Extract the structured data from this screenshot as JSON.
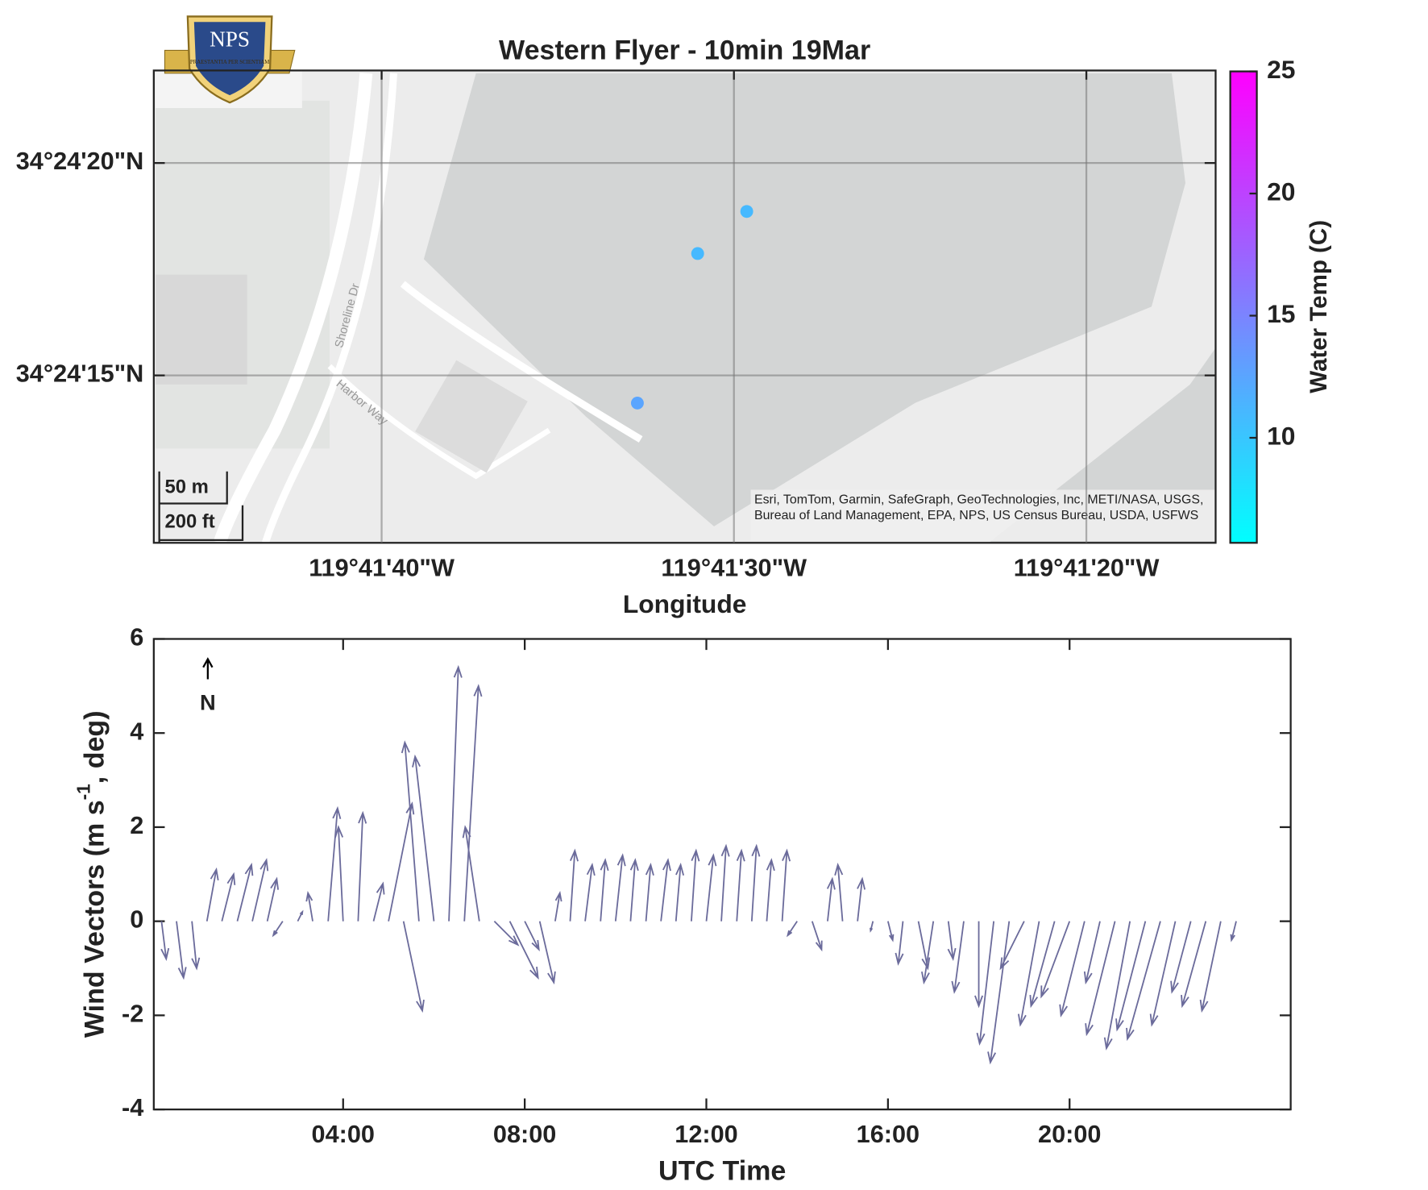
{
  "chart_data": [
    {
      "type": "scatter",
      "title": "Western Flyer - 10min 19Mar",
      "xlabel": "Longitude",
      "x": [
        -119.691566,
        -119.691953,
        -119.692428
      ],
      "y": [
        34.405239,
        34.404964,
        34.403986
      ],
      "values": [
        11,
        11,
        12.5
      ],
      "colormap": "cool",
      "clim": [
        5.7,
        25
      ],
      "cticks": [
        10,
        15,
        20,
        25
      ],
      "clabel": "Water Temp (C)",
      "xlim": [
        -119.69624,
        -119.68787
      ],
      "xticks": [
        {
          "value": -119.694444,
          "label": "119°41'40\"W"
        },
        {
          "value": -119.691667,
          "label": "119°41'30\"W"
        },
        {
          "value": -119.688889,
          "label": "119°41'20\"W"
        }
      ],
      "ylim": [
        34.403072,
        34.406161
      ],
      "yticks": [
        {
          "value": 34.404167,
          "label": "34°24'15\"N"
        },
        {
          "value": 34.405556,
          "label": "34°24'20\"N"
        }
      ],
      "grid": true,
      "attribution": "Esri, TomTom, Garmin, SafeGraph, GeoTechnologies, Inc, METI/NASA, USGS, Bureau of Land Management, EPA, NPS, US Census Bureau, USDA, USFWS",
      "scale_bar": [
        "50 m",
        "200 ft"
      ],
      "map_labels": [
        "Shoreline Dr",
        "Harbor Way"
      ],
      "logo": {
        "text": "NPS",
        "motto": "PRAESTANTIA PER SCIENTIAM"
      }
    },
    {
      "type": "quiver",
      "xlabel": "UTC Time",
      "ylabel": {
        "text": "Wind Vectors (m s",
        "sup": "-1",
        "after": ", deg)"
      },
      "annotation": "N",
      "color": "#6b6b9b",
      "x": [
        0,
        0.33,
        0.67,
        1,
        1.33,
        1.67,
        2,
        2.33,
        2.67,
        3,
        3.33,
        3.67,
        4,
        4.33,
        4.67,
        5,
        5.33,
        5.67,
        6,
        6.33,
        6.67,
        7,
        7.33,
        7.67,
        8,
        8.33,
        8.67,
        9,
        9.33,
        9.67,
        10,
        10.33,
        10.67,
        11,
        11.33,
        11.67,
        12,
        12.33,
        12.67,
        13,
        13.33,
        13.67,
        14,
        14.33,
        14.67,
        15,
        15.33,
        15.67,
        16,
        16.33,
        16.67,
        17,
        17.33,
        17.67,
        18,
        18.33,
        18.67,
        19,
        19.33,
        19.67,
        20,
        20.33,
        20.67,
        21,
        21.33,
        21.67,
        22,
        22.33,
        22.67,
        23,
        23.33,
        23.67
      ],
      "u": [
        0.1,
        0.15,
        0.1,
        0.2,
        0.25,
        0.3,
        0.3,
        0.2,
        -0.2,
        0.1,
        -0.1,
        0.2,
        -0.1,
        0.1,
        0.2,
        0.5,
        0.4,
        -0.3,
        -0.4,
        0.2,
        0.3,
        -0.3,
        0.5,
        0.6,
        0.3,
        0.3,
        0.1,
        0.1,
        0.15,
        0.1,
        0.15,
        0.1,
        0.1,
        0.15,
        0.1,
        0.1,
        0.15,
        0.1,
        0.1,
        0.1,
        0.1,
        0.1,
        -0.2,
        0.2,
        0.1,
        -0.1,
        0.1,
        -0.05,
        0.1,
        -0.1,
        0.2,
        -0.2,
        0.1,
        -0.2,
        0,
        -0.3,
        -0.4,
        -0.5,
        -0.4,
        -0.5,
        -0.6,
        -0.5,
        -0.3,
        -0.6,
        -0.5,
        -0.6,
        -0.7,
        -0.5,
        -0.4,
        -0.5,
        -0.4,
        -0.1
      ],
      "v": [
        -0.8,
        -1.2,
        -1.0,
        1.1,
        1.0,
        1.2,
        1.3,
        0.9,
        -0.3,
        0.2,
        0.6,
        2.4,
        2.0,
        2.3,
        0.8,
        2.5,
        -1.9,
        3.8,
        3.5,
        5.4,
        5.0,
        2.0,
        -0.5,
        -1.2,
        -0.6,
        -1.3,
        0.6,
        1.5,
        1.2,
        1.3,
        1.4,
        1.3,
        1.2,
        1.3,
        1.2,
        1.5,
        1.4,
        1.6,
        1.5,
        1.6,
        1.3,
        1.5,
        -0.3,
        -0.6,
        0.9,
        1.2,
        0.9,
        -0.2,
        -0.4,
        -0.9,
        -1.0,
        -1.3,
        -0.8,
        -1.5,
        -1.8,
        -2.6,
        -3.0,
        -1.0,
        -2.2,
        -1.8,
        -1.6,
        -2.0,
        -1.3,
        -2.4,
        -2.7,
        -2.3,
        -2.5,
        -2.2,
        -1.5,
        -1.8,
        -1.9,
        -0.4
      ],
      "xlim": [
        -0.17,
        24.87
      ],
      "xticks": [
        {
          "value": 4,
          "label": "04:00"
        },
        {
          "value": 8,
          "label": "08:00"
        },
        {
          "value": 12,
          "label": "12:00"
        },
        {
          "value": 16,
          "label": "16:00"
        },
        {
          "value": 20,
          "label": "20:00"
        }
      ],
      "ylim": [
        -4,
        6
      ],
      "yticks": [
        -4,
        -2,
        0,
        2,
        4,
        6
      ]
    }
  ]
}
